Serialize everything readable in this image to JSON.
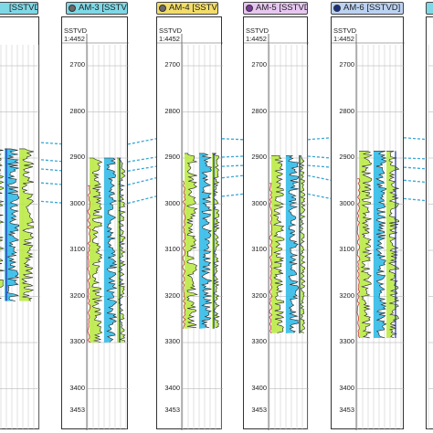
{
  "wells": [
    {
      "name": "",
      "color": "#7fd8e6"
    },
    {
      "name": "AM-3 [SSTVD]",
      "color": "#7fd8e6"
    },
    {
      "name": "AM-4 [SSTVD]",
      "color": "#f2dc6a"
    },
    {
      "name": "AM-5 [SSTVD]",
      "color": "#e6c6f0"
    },
    {
      "name": "AM-6 [SSTVD]",
      "color": "#bcd2f2"
    },
    {
      "name": "",
      "color": "#7fd8e6"
    }
  ],
  "header_row": {
    "sstvd": "SSTVD",
    "scale": "1:4452"
  },
  "depth_ticks": [
    "2700",
    "2800",
    "2900",
    "3000",
    "3100",
    "3200",
    "3300",
    "3400"
  ],
  "bottom_depth": "3453",
  "colors": {
    "correlation": "#3aa6d4",
    "gamma": "#222222",
    "log_fill_a": "#27b9e8",
    "log_fill_b": "#b7ea3c",
    "curve_blue": "#1a2fb0",
    "curve_red": "#c0392b"
  }
}
